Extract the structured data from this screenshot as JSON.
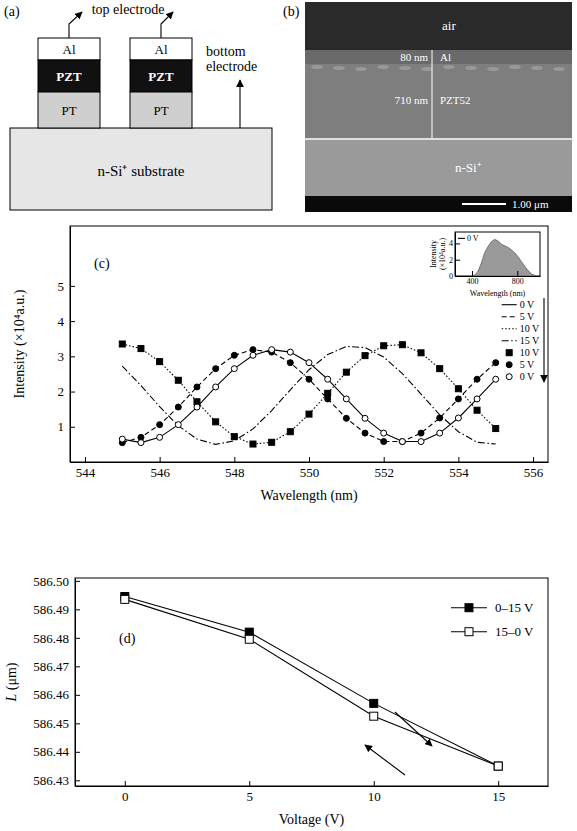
{
  "diagram": {
    "panel": "(a)",
    "top_electrode": "top electrode",
    "bottom_electrode": "bottom electrode",
    "layers": [
      "Al",
      "PZT",
      "PT"
    ],
    "substrate": "n-Si⁺ substrate"
  },
  "sem_image": {
    "panel": "(b)",
    "air": "air",
    "layers": [
      {
        "thickness": "80 nm",
        "name": "Al"
      },
      {
        "thickness": "710 nm",
        "name": "PZT52"
      }
    ],
    "substrate": "n-Si⁺",
    "scale_bar": "1.00 μm"
  },
  "chart_data": [
    {
      "type": "line",
      "title": "(c)",
      "x_label": "Wavelength (nm)",
      "y_label": "Intensity (×10⁴a.u.)",
      "xlim": [
        543.6,
        556.4
      ],
      "xticks": [
        544,
        546,
        548,
        550,
        552,
        554,
        556
      ],
      "ylim": [
        0,
        6.7
      ],
      "yticks": [
        1,
        2,
        3,
        4,
        5
      ],
      "legend": "center right",
      "x": [
        545,
        545.5,
        546,
        546.5,
        547,
        547.5,
        548,
        548.5,
        549,
        549.5,
        550,
        550.5,
        551,
        551.5,
        552,
        552.5,
        553,
        553.5,
        554,
        554.5,
        555
      ],
      "series": [
        {
          "name": "0 V",
          "color": "#000000",
          "line_style": "solid",
          "marker": "none",
          "values": [
            0.65,
            0.55,
            0.7,
            1.06,
            1.56,
            2.13,
            2.65,
            3.03,
            3.19,
            3.12,
            2.82,
            2.35,
            1.79,
            1.24,
            0.82,
            0.58,
            0.58,
            0.82,
            1.25,
            1.79,
            2.35
          ]
        },
        {
          "name": "5 V",
          "color": "#000000",
          "line_style": "dashed",
          "marker": "none",
          "values": [
            0.55,
            0.7,
            1.06,
            1.56,
            2.13,
            2.65,
            3.03,
            3.19,
            3.12,
            2.82,
            2.35,
            1.79,
            1.24,
            0.82,
            0.58,
            0.58,
            0.82,
            1.25,
            1.79,
            2.35,
            2.82
          ]
        },
        {
          "name": "10 V",
          "color": "#000000",
          "line_style": "dotted",
          "marker": "none",
          "values": [
            3.35,
            3.22,
            2.85,
            2.32,
            1.71,
            1.14,
            0.72,
            0.51,
            0.56,
            0.86,
            1.36,
            1.95,
            2.55,
            3.02,
            3.3,
            3.33,
            3.1,
            2.65,
            2.08,
            1.47,
            0.95
          ]
        },
        {
          "name": "15 V",
          "color": "#000000",
          "line_style": "dash-dot",
          "marker": "none",
          "values": [
            2.72,
            2.17,
            1.57,
            1.03,
            0.65,
            0.5,
            0.6,
            0.94,
            1.46,
            2.05,
            2.62,
            3.05,
            3.28,
            3.25,
            2.98,
            2.51,
            1.93,
            1.34,
            0.86,
            0.56,
            0.51
          ]
        },
        {
          "name": "10 V",
          "color": "#000000",
          "line_style": "none",
          "marker": "filled-square",
          "values": [
            3.35,
            3.22,
            2.85,
            2.32,
            1.71,
            1.14,
            0.72,
            0.51,
            0.56,
            0.86,
            1.36,
            1.95,
            2.55,
            3.02,
            3.3,
            3.33,
            3.1,
            2.65,
            2.08,
            1.47,
            0.95
          ]
        },
        {
          "name": "5 V",
          "color": "#000000",
          "line_style": "none",
          "marker": "filled-circle",
          "values": [
            0.55,
            0.7,
            1.06,
            1.56,
            2.13,
            2.65,
            3.03,
            3.19,
            3.12,
            2.82,
            2.35,
            1.79,
            1.24,
            0.82,
            0.58,
            0.58,
            0.82,
            1.25,
            1.79,
            2.35,
            2.82
          ]
        },
        {
          "name": "0 V",
          "color": "#000000",
          "line_style": "none",
          "marker": "open-circle",
          "values": [
            0.65,
            0.55,
            0.7,
            1.06,
            1.56,
            2.13,
            2.65,
            3.03,
            3.19,
            3.12,
            2.82,
            2.35,
            1.79,
            1.24,
            0.82,
            0.58,
            0.58,
            0.82,
            1.25,
            1.79,
            2.35
          ]
        }
      ]
    },
    {
      "type": "area",
      "x_label": "Wavelength (nm)",
      "y_label": "Intensity (×10⁴a.u.)",
      "xlim": [
        250,
        1000
      ],
      "xticks": [
        400,
        800
      ],
      "ylim": [
        0,
        5.4
      ],
      "yticks": [
        0,
        2,
        4
      ],
      "legend": "upper left",
      "x": [
        420,
        450,
        480,
        510,
        540,
        570,
        600,
        630,
        660,
        690,
        720,
        750,
        780,
        810,
        840,
        870,
        900,
        930,
        960
      ],
      "series": [
        {
          "name": "0 V",
          "color": "#9a9a9a",
          "values": [
            0.1,
            0.5,
            1.5,
            2.8,
            3.6,
            4.2,
            4.5,
            4.3,
            3.9,
            3.7,
            3.5,
            3.2,
            2.8,
            2.3,
            1.7,
            1.1,
            0.6,
            0.2,
            0.05
          ]
        }
      ]
    },
    {
      "type": "line",
      "title": "(d)",
      "x_label": "Voltage (V)",
      "y_label": "L (μm)",
      "xlim": [
        -2,
        17
      ],
      "xticks": [
        0,
        5,
        10,
        15
      ],
      "ylim": [
        586.428,
        586.501
      ],
      "yticks": [
        {
          "value": 586.5,
          "label": "586.50"
        },
        586.49,
        586.48,
        586.47,
        586.46,
        586.45,
        586.44,
        586.43
      ],
      "legend": "upper right",
      "x": [
        0,
        5,
        10,
        15
      ],
      "series": [
        {
          "name": "0–15 V",
          "color": "#000000",
          "line_style": "solid",
          "marker": "filled-square",
          "values": [
            586.4945,
            586.482,
            586.457,
            586.435
          ]
        },
        {
          "name": "15–0 V",
          "color": "#000000",
          "line_style": "solid",
          "marker": "open-square",
          "values": [
            586.4935,
            586.4795,
            586.4525,
            586.435
          ]
        }
      ]
    }
  ]
}
